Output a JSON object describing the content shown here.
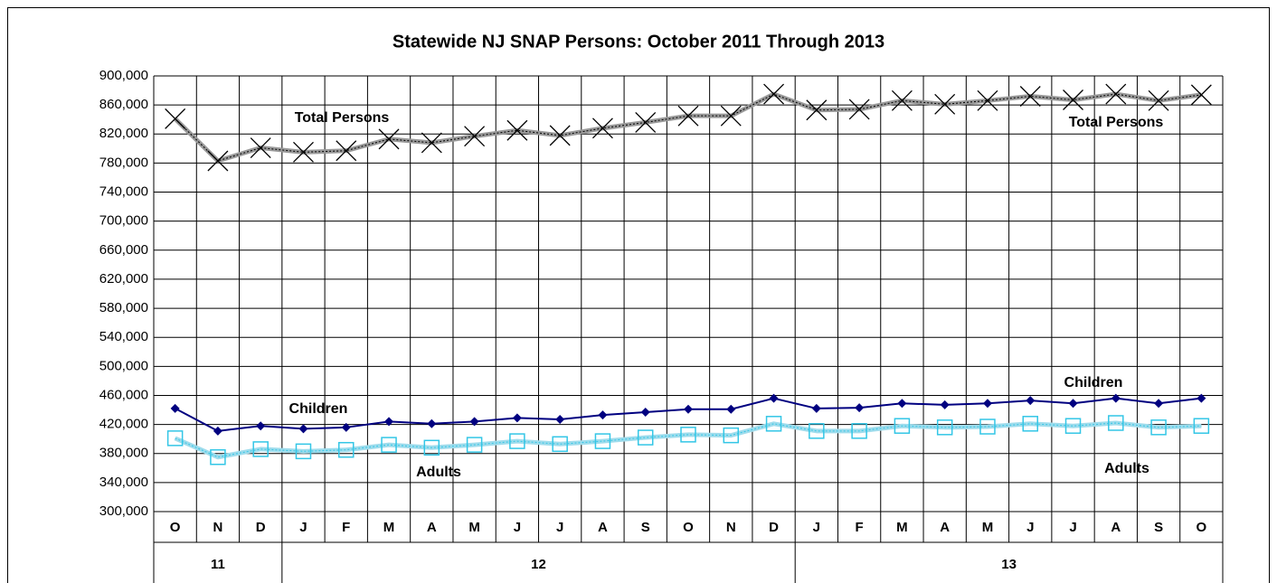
{
  "chart_data": {
    "type": "line",
    "title": "Statewide NJ SNAP Persons: October 2011 Through 2013",
    "categories": [
      "O",
      "N",
      "D",
      "J",
      "F",
      "M",
      "A",
      "M",
      "J",
      "J",
      "A",
      "S",
      "O",
      "N",
      "D",
      "J",
      "F",
      "M",
      "A",
      "M",
      "J",
      "J",
      "A",
      "S",
      "O"
    ],
    "groups": [
      "11",
      "12",
      "13"
    ],
    "series": [
      {
        "name": "Total Persons",
        "color": "#000000",
        "values": [
          841000,
          783000,
          801000,
          795000,
          797000,
          813000,
          808000,
          817000,
          825000,
          818000,
          828000,
          836000,
          845000,
          845000,
          875000,
          853000,
          854000,
          866000,
          861000,
          866000,
          872000,
          867000,
          875000,
          866000,
          874000
        ]
      },
      {
        "name": "Children",
        "color": "#000080",
        "values": [
          442000,
          411000,
          418000,
          414000,
          416000,
          424000,
          421000,
          424000,
          429000,
          427000,
          433000,
          437000,
          441000,
          441000,
          456000,
          442000,
          443000,
          449000,
          447000,
          449000,
          453000,
          449000,
          456000,
          449000,
          456000
        ]
      },
      {
        "name": "Adults",
        "color": "#33c6e6",
        "values": [
          401000,
          375000,
          386000,
          383000,
          385000,
          392000,
          388000,
          392000,
          397000,
          393000,
          397000,
          402000,
          406000,
          405000,
          421000,
          411000,
          411000,
          418000,
          416000,
          417000,
          421000,
          418000,
          422000,
          416000,
          418000
        ]
      }
    ],
    "annotations": [
      "Total Persons",
      "Total Persons",
      "Children",
      "Children",
      "Adults",
      "Adults"
    ],
    "ylim": [
      300000,
      900000
    ],
    "yticks": [
      {
        "value": 300000,
        "label": "300,000"
      },
      {
        "value": 340000,
        "label": "340,000"
      },
      {
        "value": 380000,
        "label": "380,000"
      },
      {
        "value": 420000,
        "label": "420,000"
      },
      {
        "value": 460000,
        "label": "460,000"
      },
      {
        "value": 500000,
        "label": "500,000"
      },
      {
        "value": 540000,
        "label": "540,000"
      },
      {
        "value": 580000,
        "label": "580,000"
      },
      {
        "value": 620000,
        "label": "620,000"
      },
      {
        "value": 660000,
        "label": "660,000"
      },
      {
        "value": 700000,
        "label": "700,000"
      },
      {
        "value": 740000,
        "label": "740,000"
      },
      {
        "value": 780000,
        "label": "780,000"
      },
      {
        "value": 820000,
        "label": "820,000"
      },
      {
        "value": 860000,
        "label": "860,000"
      },
      {
        "value": 900000,
        "label": "900,000"
      }
    ],
    "grid": true
  }
}
